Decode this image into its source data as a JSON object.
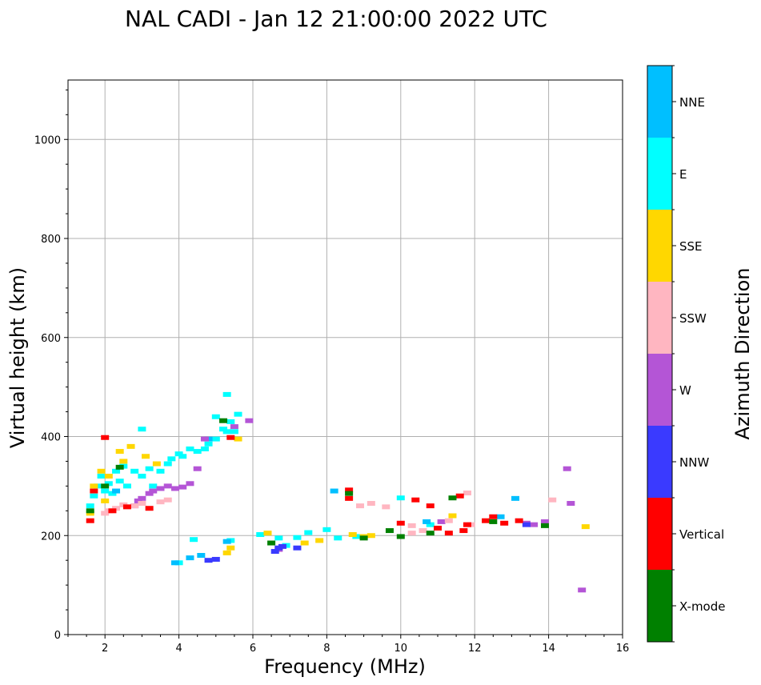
{
  "chart_data": {
    "type": "scatter",
    "title": "NAL CADI - Jan 12 21:00:00 2022 UTC",
    "xlabel": "Frequency (MHz)",
    "ylabel": "Virtual height (km)",
    "xlim": [
      1,
      16
    ],
    "ylim": [
      0,
      1120
    ],
    "xticks": [
      2,
      4,
      6,
      8,
      10,
      12,
      14,
      16
    ],
    "yticks": [
      0,
      200,
      400,
      600,
      800,
      1000
    ],
    "grid": true,
    "colorbar": {
      "label": "Azimuth Direction",
      "categories": [
        "X-mode",
        "Vertical",
        "NNW",
        "W",
        "SSW",
        "SSE",
        "E",
        "NNE"
      ],
      "colors": [
        "#008000",
        "#ff0000",
        "#3a3aff",
        "#b455d6",
        "#ffb6c1",
        "#ffd700",
        "#00ffff",
        "#00bfff"
      ]
    },
    "series": [
      {
        "name": "E",
        "points": [
          [
            1.6,
            260
          ],
          [
            1.7,
            280
          ],
          [
            1.8,
            300
          ],
          [
            1.9,
            320
          ],
          [
            2.0,
            290
          ],
          [
            2.1,
            305
          ],
          [
            2.2,
            285
          ],
          [
            2.3,
            330
          ],
          [
            2.4,
            310
          ],
          [
            2.5,
            340
          ],
          [
            2.6,
            300
          ],
          [
            2.8,
            330
          ],
          [
            3.0,
            320
          ],
          [
            3.2,
            335
          ],
          [
            3.3,
            300
          ],
          [
            3.5,
            330
          ],
          [
            3.7,
            345
          ],
          [
            3.8,
            355
          ],
          [
            4.0,
            365
          ],
          [
            4.1,
            360
          ],
          [
            4.3,
            375
          ],
          [
            4.5,
            370
          ],
          [
            4.7,
            375
          ],
          [
            4.8,
            385
          ],
          [
            5.0,
            395
          ],
          [
            5.0,
            440
          ],
          [
            5.2,
            415
          ],
          [
            5.3,
            410
          ],
          [
            5.4,
            430
          ],
          [
            5.5,
            410
          ],
          [
            5.6,
            445
          ],
          [
            5.3,
            485
          ],
          [
            6.2,
            202
          ],
          [
            6.7,
            195
          ],
          [
            6.9,
            180
          ],
          [
            7.2,
            196
          ],
          [
            7.5,
            206
          ],
          [
            8.0,
            212
          ],
          [
            8.3,
            195
          ],
          [
            8.8,
            198
          ],
          [
            10.0,
            276
          ],
          [
            10.8,
            222
          ],
          [
            4.0,
            145
          ],
          [
            4.4,
            192
          ],
          [
            5.4,
            190
          ],
          [
            3.0,
            415
          ]
        ]
      },
      {
        "name": "NNE",
        "points": [
          [
            3.9,
            145
          ],
          [
            4.3,
            155
          ],
          [
            4.6,
            160
          ],
          [
            5.3,
            188
          ],
          [
            8.2,
            290
          ],
          [
            10.7,
            228
          ],
          [
            12.7,
            238
          ],
          [
            13.1,
            275
          ],
          [
            2.3,
            290
          ],
          [
            4.8,
            395
          ]
        ]
      },
      {
        "name": "SSE",
        "points": [
          [
            1.6,
            245
          ],
          [
            1.7,
            300
          ],
          [
            1.9,
            330
          ],
          [
            2.0,
            270
          ],
          [
            2.1,
            320
          ],
          [
            2.4,
            370
          ],
          [
            2.5,
            350
          ],
          [
            2.7,
            380
          ],
          [
            3.1,
            360
          ],
          [
            3.4,
            345
          ],
          [
            5.6,
            395
          ],
          [
            5.3,
            165
          ],
          [
            5.4,
            175
          ],
          [
            6.4,
            205
          ],
          [
            7.4,
            185
          ],
          [
            7.8,
            190
          ],
          [
            8.7,
            202
          ],
          [
            9.0,
            198
          ],
          [
            9.2,
            200
          ],
          [
            11.4,
            240
          ],
          [
            15.0,
            218
          ]
        ]
      },
      {
        "name": "W",
        "points": [
          [
            2.8,
            260
          ],
          [
            2.9,
            270
          ],
          [
            3.0,
            275
          ],
          [
            3.2,
            285
          ],
          [
            3.3,
            290
          ],
          [
            3.5,
            295
          ],
          [
            3.7,
            300
          ],
          [
            3.9,
            295
          ],
          [
            4.1,
            298
          ],
          [
            4.3,
            305
          ],
          [
            4.5,
            335
          ],
          [
            4.7,
            395
          ],
          [
            5.5,
            420
          ],
          [
            5.9,
            432
          ],
          [
            6.7,
            172
          ],
          [
            11.1,
            228
          ],
          [
            13.4,
            225
          ],
          [
            13.6,
            222
          ],
          [
            13.9,
            228
          ],
          [
            14.5,
            335
          ],
          [
            14.6,
            265
          ],
          [
            14.9,
            90
          ]
        ]
      },
      {
        "name": "SSW",
        "points": [
          [
            2.0,
            245
          ],
          [
            2.1,
            250
          ],
          [
            2.3,
            255
          ],
          [
            2.5,
            262
          ],
          [
            2.8,
            260
          ],
          [
            3.0,
            265
          ],
          [
            3.5,
            268
          ],
          [
            3.7,
            272
          ],
          [
            8.9,
            260
          ],
          [
            9.2,
            265
          ],
          [
            9.6,
            258
          ],
          [
            10.3,
            220
          ],
          [
            10.3,
            205
          ],
          [
            10.6,
            210
          ],
          [
            11.3,
            230
          ],
          [
            11.9,
            222
          ],
          [
            14.1,
            272
          ],
          [
            11.8,
            286
          ]
        ]
      },
      {
        "name": "NNW",
        "points": [
          [
            4.8,
            150
          ],
          [
            5.0,
            152
          ],
          [
            6.6,
            168
          ],
          [
            6.7,
            175
          ],
          [
            6.8,
            178
          ],
          [
            7.2,
            175
          ],
          [
            13.4,
            222
          ]
        ]
      },
      {
        "name": "Vertical",
        "points": [
          [
            1.6,
            230
          ],
          [
            1.7,
            290
          ],
          [
            2.0,
            398
          ],
          [
            2.2,
            250
          ],
          [
            2.6,
            258
          ],
          [
            3.2,
            255
          ],
          [
            5.4,
            398
          ],
          [
            8.6,
            292
          ],
          [
            8.6,
            275
          ],
          [
            10.0,
            225
          ],
          [
            10.4,
            272
          ],
          [
            10.8,
            260
          ],
          [
            11.0,
            215
          ],
          [
            11.3,
            205
          ],
          [
            11.6,
            280
          ],
          [
            11.7,
            210
          ],
          [
            11.8,
            222
          ],
          [
            12.3,
            230
          ],
          [
            12.5,
            238
          ],
          [
            12.8,
            225
          ],
          [
            13.2,
            230
          ]
        ]
      },
      {
        "name": "X-mode",
        "points": [
          [
            1.6,
            250
          ],
          [
            2.0,
            300
          ],
          [
            2.4,
            338
          ],
          [
            5.2,
            432
          ],
          [
            6.5,
            185
          ],
          [
            8.6,
            285
          ],
          [
            9.0,
            195
          ],
          [
            9.7,
            210
          ],
          [
            10.0,
            198
          ],
          [
            10.8,
            205
          ],
          [
            11.4,
            276
          ],
          [
            12.5,
            228
          ],
          [
            13.9,
            220
          ]
        ]
      }
    ]
  }
}
